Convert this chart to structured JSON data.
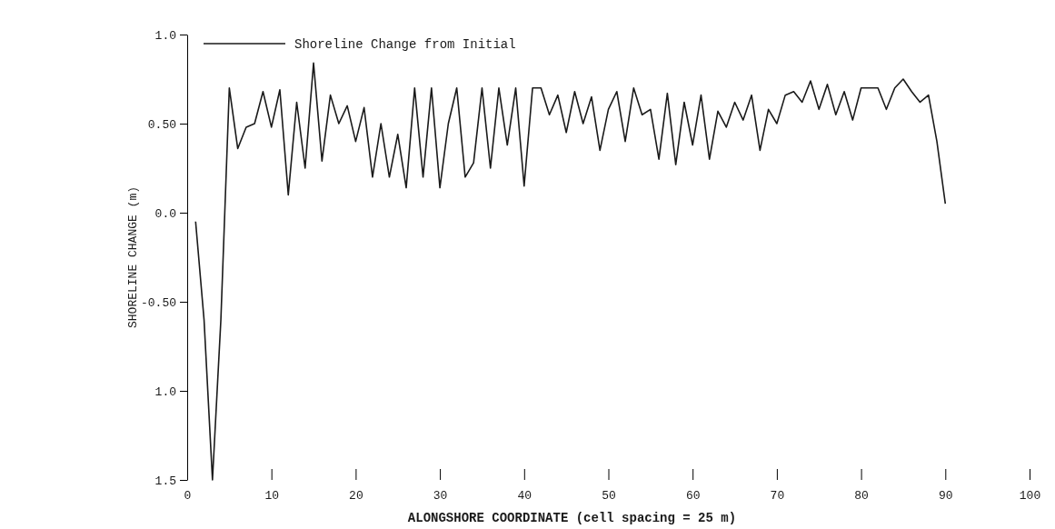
{
  "chart_data": {
    "type": "line",
    "xlabel": "ALONGSHORE COORDINATE (cell spacing = 25 m)",
    "ylabel": "SHORELINE CHANGE (m)",
    "xlim": [
      0,
      100
    ],
    "xticks": [
      0,
      10,
      20,
      30,
      40,
      50,
      60,
      70,
      80,
      90,
      100
    ],
    "ylim": [
      -1.5,
      1.0
    ],
    "yticks": [
      {
        "value": -1.5,
        "label": "1.5"
      },
      {
        "value": -1.0,
        "label": "1.0"
      },
      {
        "value": -0.5,
        "label": "-0.50"
      },
      {
        "value": 0,
        "label": "0.0"
      },
      {
        "value": 0.5,
        "label": "0.50"
      },
      {
        "value": 1.0,
        "label": "1.0"
      }
    ],
    "legend": "top left",
    "grid": false,
    "marker": "none",
    "line_style": "solid",
    "series": [
      {
        "name": "Shoreline Change from Initial",
        "color": "#1a1a1a",
        "x": [
          1,
          2,
          3,
          4,
          5,
          6,
          7,
          8,
          9,
          10,
          11,
          12,
          13,
          14,
          15,
          16,
          17,
          18,
          19,
          20,
          21,
          22,
          23,
          24,
          25,
          26,
          27,
          28,
          29,
          30,
          31,
          32,
          33,
          34,
          35,
          36,
          37,
          38,
          39,
          40,
          41,
          42,
          43,
          44,
          45,
          46,
          47,
          48,
          49,
          50,
          51,
          52,
          53,
          54,
          55,
          56,
          57,
          58,
          59,
          60,
          61,
          62,
          63,
          64,
          65,
          66,
          67,
          68,
          69,
          70,
          71,
          72,
          73,
          74,
          75,
          76,
          77,
          78,
          79,
          80,
          81,
          82,
          83,
          84,
          85,
          86,
          87,
          88,
          89,
          90
        ],
        "values": [
          -0.05,
          -0.6,
          -1.5,
          -0.6,
          0.7,
          0.36,
          0.48,
          0.5,
          0.68,
          0.48,
          0.69,
          0.1,
          0.62,
          0.25,
          0.84,
          0.29,
          0.66,
          0.5,
          0.6,
          0.4,
          0.59,
          0.2,
          0.5,
          0.2,
          0.44,
          0.14,
          0.7,
          0.2,
          0.7,
          0.14,
          0.5,
          0.7,
          0.2,
          0.28,
          0.7,
          0.25,
          0.7,
          0.38,
          0.7,
          0.15,
          0.7,
          0.7,
          0.55,
          0.66,
          0.45,
          0.68,
          0.5,
          0.65,
          0.35,
          0.58,
          0.68,
          0.4,
          0.7,
          0.55,
          0.58,
          0.3,
          0.67,
          0.27,
          0.62,
          0.38,
          0.66,
          0.3,
          0.57,
          0.48,
          0.62,
          0.52,
          0.66,
          0.35,
          0.58,
          0.5,
          0.66,
          0.68,
          0.62,
          0.74,
          0.58,
          0.72,
          0.55,
          0.68,
          0.52,
          0.7,
          0.7,
          0.7,
          0.58,
          0.7,
          0.75,
          0.68,
          0.62,
          0.66,
          0.4,
          0.05
        ]
      }
    ]
  }
}
